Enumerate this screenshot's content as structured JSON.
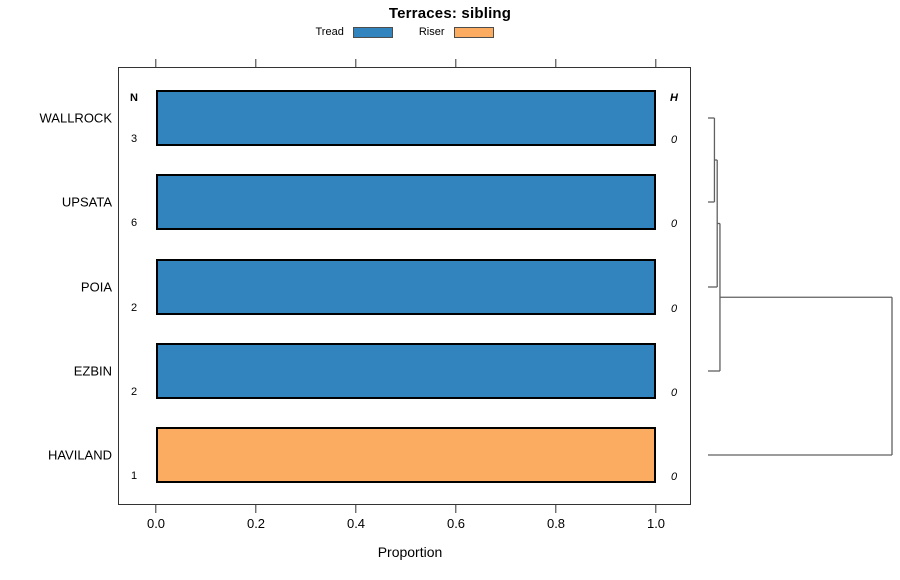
{
  "title": "Terraces: sibling",
  "legend": [
    {
      "label": "Tread",
      "color": "#3184BE"
    },
    {
      "label": "Riser",
      "color": "#FBAC60"
    }
  ],
  "columns": {
    "n_header": "N",
    "h_header": "H"
  },
  "xlabel": "Proportion",
  "colors": {
    "tread": "#3184BE",
    "riser": "#FBAC60",
    "bar_border": "#000000",
    "dendrogram_line": "#606060",
    "axis": "#333333"
  },
  "chart_data": {
    "type": "bar",
    "orientation": "horizontal",
    "title": "Terraces: sibling",
    "xlabel": "Proportion",
    "ylabel": "",
    "xlim": [
      0.0,
      1.0
    ],
    "x_ticks": [
      "0.0",
      "0.2",
      "0.4",
      "0.6",
      "0.8",
      "1.0"
    ],
    "categories": [
      "WALLROCK",
      "UPSATA",
      "POIA",
      "EZBIN",
      "HAVILAND"
    ],
    "series": [
      {
        "name": "Tread",
        "color": "#3184BE",
        "values": [
          1.0,
          1.0,
          1.0,
          1.0,
          0.0
        ]
      },
      {
        "name": "Riser",
        "color": "#FBAC60",
        "values": [
          0.0,
          0.0,
          0.0,
          0.0,
          1.0
        ]
      }
    ],
    "n_column": {
      "header": "N",
      "values": [
        "3",
        "6",
        "2",
        "2",
        "1"
      ]
    },
    "h_column": {
      "header": "H",
      "values": [
        "0",
        "0",
        "0",
        "0",
        "0"
      ]
    },
    "legend_position": "top",
    "grid": false,
    "dendrogram": {
      "side": "right",
      "structure": "((((WALLROCK,UPSATA),POIA),EZBIN),HAVILAND)",
      "merges": [
        {
          "a": {
            "type": "leaf",
            "index": 0
          },
          "b": {
            "type": "leaf",
            "index": 1
          },
          "height": 0.035
        },
        {
          "a": {
            "type": "merge",
            "index": 0
          },
          "b": {
            "type": "leaf",
            "index": 2
          },
          "height": 0.05
        },
        {
          "a": {
            "type": "merge",
            "index": 1
          },
          "b": {
            "type": "leaf",
            "index": 3
          },
          "height": 0.065
        },
        {
          "a": {
            "type": "merge",
            "index": 2
          },
          "b": {
            "type": "leaf",
            "index": 4
          },
          "height": 1.0
        }
      ]
    }
  }
}
